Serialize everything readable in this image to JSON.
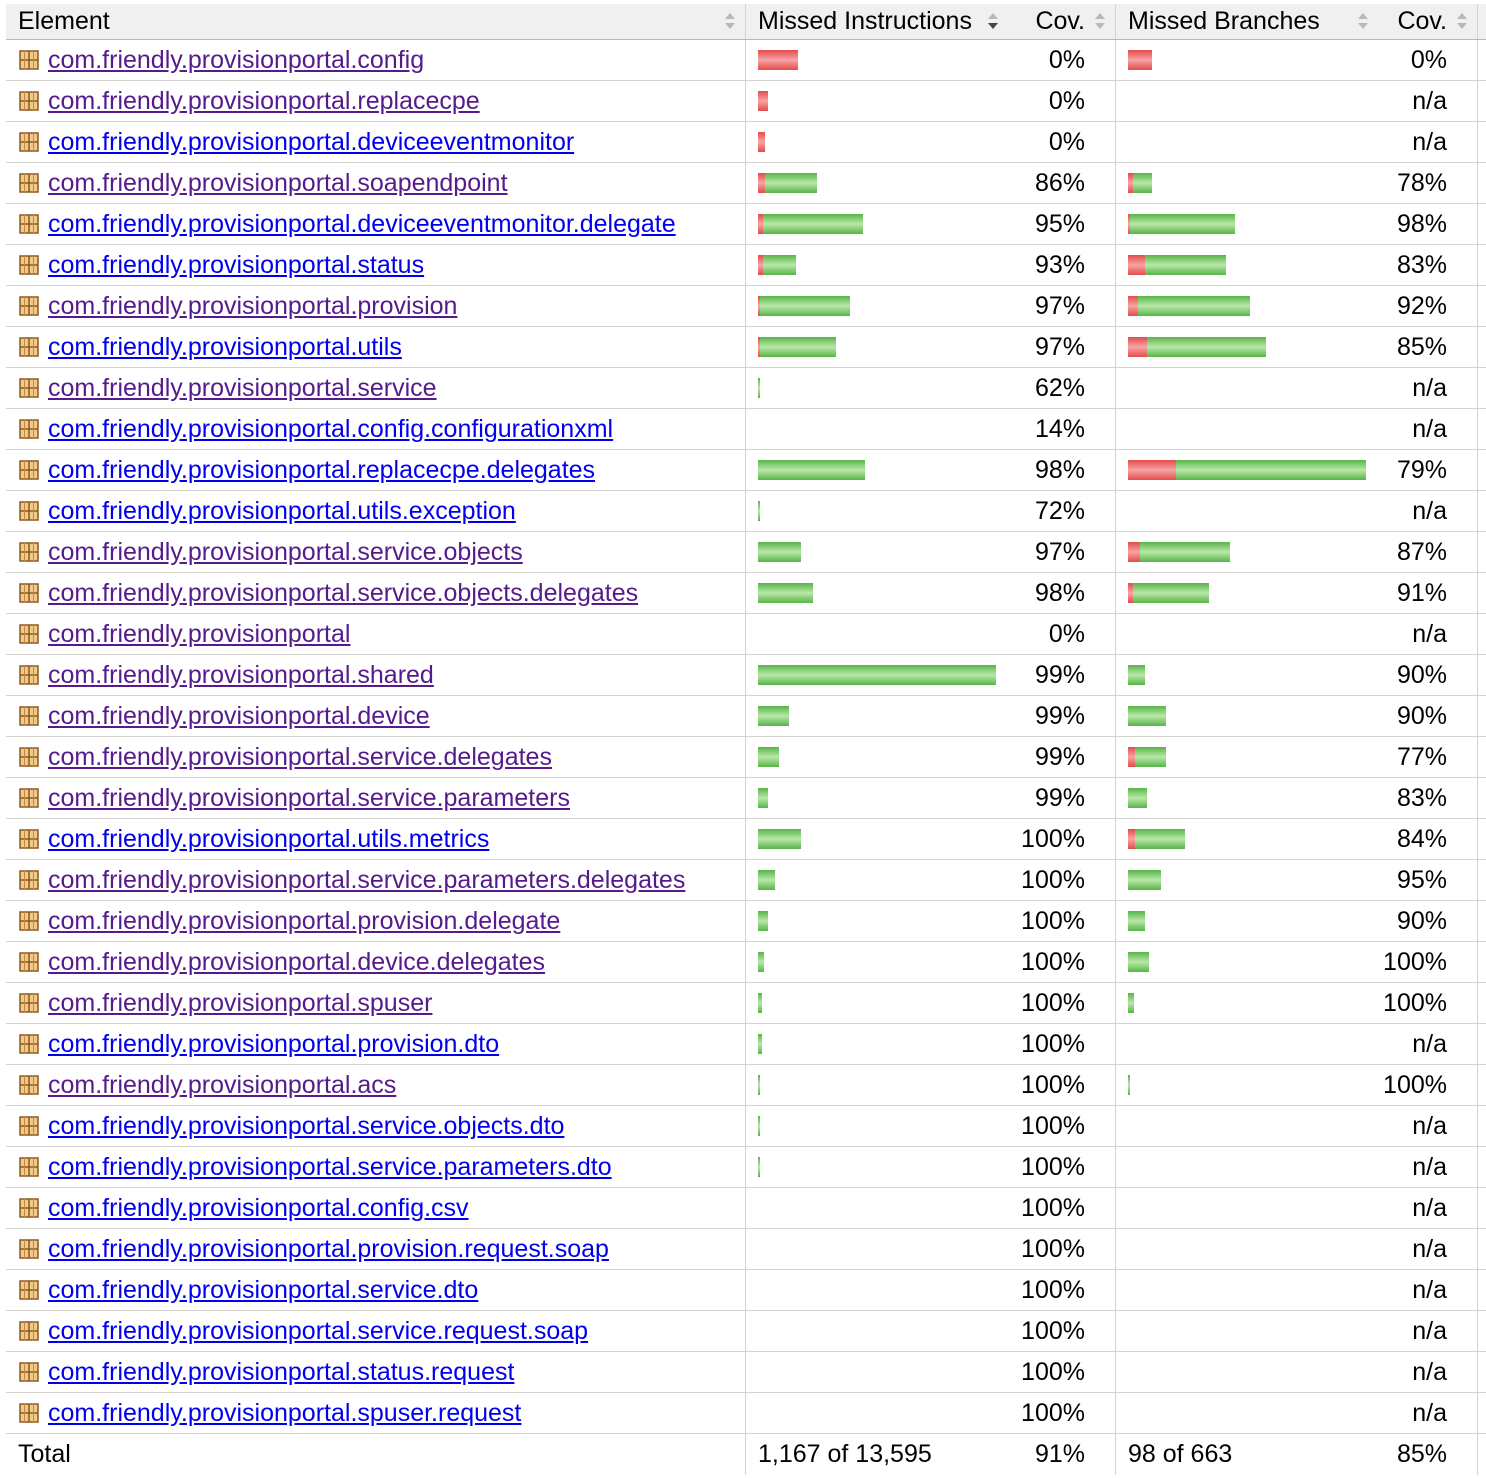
{
  "colors": {
    "link": "#0000ee",
    "visited": "#551a8b",
    "missed": "#e44b4b",
    "covered": "#58b448"
  },
  "icons": {
    "package": "package-icon",
    "sort": "sort-arrows-icon"
  },
  "table": {
    "headers": {
      "element": "Element",
      "missed_instructions": "Missed Instructions",
      "instr_cov": "Cov.",
      "missed_branches": "Missed Branches",
      "branch_cov": "Cov."
    },
    "rows": [
      {
        "name": "com.friendly.provisionportal.config",
        "visited": true,
        "instr": {
          "missed_frac": 0.17,
          "covered_frac": 0.0
        },
        "instr_cov": "0%",
        "branch": {
          "missed_frac": 0.1,
          "covered_frac": 0.0
        },
        "branch_cov": "0%"
      },
      {
        "name": "com.friendly.provisionportal.replacecpe",
        "visited": true,
        "instr": {
          "missed_frac": 0.04,
          "covered_frac": 0.0
        },
        "instr_cov": "0%",
        "branch": null,
        "branch_cov": "n/a"
      },
      {
        "name": "com.friendly.provisionportal.deviceeventmonitor",
        "visited": false,
        "instr": {
          "missed_frac": 0.03,
          "covered_frac": 0.0
        },
        "instr_cov": "0%",
        "branch": null,
        "branch_cov": "n/a"
      },
      {
        "name": "com.friendly.provisionportal.soapendpoint",
        "visited": true,
        "instr": {
          "missed_frac": 0.03,
          "covered_frac": 0.22
        },
        "instr_cov": "86%",
        "branch": {
          "missed_frac": 0.02,
          "covered_frac": 0.08
        },
        "branch_cov": "78%"
      },
      {
        "name": "com.friendly.provisionportal.deviceeventmonitor.delegate",
        "visited": false,
        "instr": {
          "missed_frac": 0.02,
          "covered_frac": 0.42
        },
        "instr_cov": "95%",
        "branch": {
          "missed_frac": 0.01,
          "covered_frac": 0.44
        },
        "branch_cov": "98%"
      },
      {
        "name": "com.friendly.provisionportal.status",
        "visited": false,
        "instr": {
          "missed_frac": 0.02,
          "covered_frac": 0.14
        },
        "instr_cov": "93%",
        "branch": {
          "missed_frac": 0.07,
          "covered_frac": 0.34
        },
        "branch_cov": "83%"
      },
      {
        "name": "com.friendly.provisionportal.provision",
        "visited": true,
        "instr": {
          "missed_frac": 0.01,
          "covered_frac": 0.38
        },
        "instr_cov": "97%",
        "branch": {
          "missed_frac": 0.04,
          "covered_frac": 0.47
        },
        "branch_cov": "92%"
      },
      {
        "name": "com.friendly.provisionportal.utils",
        "visited": false,
        "instr": {
          "missed_frac": 0.01,
          "covered_frac": 0.32
        },
        "instr_cov": "97%",
        "branch": {
          "missed_frac": 0.08,
          "covered_frac": 0.5
        },
        "branch_cov": "85%"
      },
      {
        "name": "com.friendly.provisionportal.service",
        "visited": true,
        "instr": {
          "missed_frac": 0.0,
          "covered_frac": 0.008
        },
        "instr_cov": "62%",
        "branch": null,
        "branch_cov": "n/a"
      },
      {
        "name": "com.friendly.provisionportal.config.configurationxml",
        "visited": false,
        "instr": null,
        "instr_cov": "14%",
        "branch": null,
        "branch_cov": "n/a"
      },
      {
        "name": "com.friendly.provisionportal.replacecpe.delegates",
        "visited": false,
        "instr": {
          "missed_frac": 0.0,
          "covered_frac": 0.45
        },
        "instr_cov": "98%",
        "branch": {
          "missed_frac": 0.2,
          "covered_frac": 0.8
        },
        "branch_cov": "79%"
      },
      {
        "name": "com.friendly.provisionportal.utils.exception",
        "visited": false,
        "instr": {
          "missed_frac": 0.0,
          "covered_frac": 0.008
        },
        "instr_cov": "72%",
        "branch": null,
        "branch_cov": "n/a"
      },
      {
        "name": "com.friendly.provisionportal.service.objects",
        "visited": true,
        "instr": {
          "missed_frac": 0.0,
          "covered_frac": 0.18
        },
        "instr_cov": "97%",
        "branch": {
          "missed_frac": 0.05,
          "covered_frac": 0.38
        },
        "branch_cov": "87%"
      },
      {
        "name": "com.friendly.provisionportal.service.objects.delegates",
        "visited": true,
        "instr": {
          "missed_frac": 0.0,
          "covered_frac": 0.23
        },
        "instr_cov": "98%",
        "branch": {
          "missed_frac": 0.02,
          "covered_frac": 0.32
        },
        "branch_cov": "91%"
      },
      {
        "name": "com.friendly.provisionportal",
        "visited": true,
        "instr": null,
        "instr_cov": "0%",
        "branch": null,
        "branch_cov": "n/a"
      },
      {
        "name": "com.friendly.provisionportal.shared",
        "visited": true,
        "instr": {
          "missed_frac": 0.0,
          "covered_frac": 1.0
        },
        "instr_cov": "99%",
        "branch": {
          "missed_frac": 0.0,
          "covered_frac": 0.07
        },
        "branch_cov": "90%"
      },
      {
        "name": "com.friendly.provisionportal.device",
        "visited": true,
        "instr": {
          "missed_frac": 0.0,
          "covered_frac": 0.13
        },
        "instr_cov": "99%",
        "branch": {
          "missed_frac": 0.0,
          "covered_frac": 0.16
        },
        "branch_cov": "90%"
      },
      {
        "name": "com.friendly.provisionportal.service.delegates",
        "visited": true,
        "instr": {
          "missed_frac": 0.0,
          "covered_frac": 0.09
        },
        "instr_cov": "99%",
        "branch": {
          "missed_frac": 0.03,
          "covered_frac": 0.13
        },
        "branch_cov": "77%"
      },
      {
        "name": "com.friendly.provisionportal.service.parameters",
        "visited": true,
        "instr": {
          "missed_frac": 0.0,
          "covered_frac": 0.04
        },
        "instr_cov": "99%",
        "branch": {
          "missed_frac": 0.0,
          "covered_frac": 0.08
        },
        "branch_cov": "83%"
      },
      {
        "name": "com.friendly.provisionportal.utils.metrics",
        "visited": false,
        "instr": {
          "missed_frac": 0.0,
          "covered_frac": 0.18
        },
        "instr_cov": "100%",
        "branch": {
          "missed_frac": 0.03,
          "covered_frac": 0.21
        },
        "branch_cov": "84%"
      },
      {
        "name": "com.friendly.provisionportal.service.parameters.delegates",
        "visited": true,
        "instr": {
          "missed_frac": 0.0,
          "covered_frac": 0.07
        },
        "instr_cov": "100%",
        "branch": {
          "missed_frac": 0.0,
          "covered_frac": 0.14
        },
        "branch_cov": "95%"
      },
      {
        "name": "com.friendly.provisionportal.provision.delegate",
        "visited": true,
        "instr": {
          "missed_frac": 0.0,
          "covered_frac": 0.04
        },
        "instr_cov": "100%",
        "branch": {
          "missed_frac": 0.0,
          "covered_frac": 0.07
        },
        "branch_cov": "90%"
      },
      {
        "name": "com.friendly.provisionportal.device.delegates",
        "visited": true,
        "instr": {
          "missed_frac": 0.0,
          "covered_frac": 0.025
        },
        "instr_cov": "100%",
        "branch": {
          "missed_frac": 0.0,
          "covered_frac": 0.09
        },
        "branch_cov": "100%"
      },
      {
        "name": "com.friendly.provisionportal.spuser",
        "visited": true,
        "instr": {
          "missed_frac": 0.0,
          "covered_frac": 0.017
        },
        "instr_cov": "100%",
        "branch": {
          "missed_frac": 0.0,
          "covered_frac": 0.025
        },
        "branch_cov": "100%"
      },
      {
        "name": "com.friendly.provisionportal.provision.dto",
        "visited": false,
        "instr": {
          "missed_frac": 0.0,
          "covered_frac": 0.017
        },
        "instr_cov": "100%",
        "branch": null,
        "branch_cov": "n/a"
      },
      {
        "name": "com.friendly.provisionportal.acs",
        "visited": true,
        "instr": {
          "missed_frac": 0.0,
          "covered_frac": 0.008
        },
        "instr_cov": "100%",
        "branch": {
          "missed_frac": 0.0,
          "covered_frac": 0.008
        },
        "branch_cov": "100%"
      },
      {
        "name": "com.friendly.provisionportal.service.objects.dto",
        "visited": false,
        "instr": {
          "missed_frac": 0.0,
          "covered_frac": 0.008
        },
        "instr_cov": "100%",
        "branch": null,
        "branch_cov": "n/a"
      },
      {
        "name": "com.friendly.provisionportal.service.parameters.dto",
        "visited": false,
        "instr": {
          "missed_frac": 0.0,
          "covered_frac": 0.008
        },
        "instr_cov": "100%",
        "branch": null,
        "branch_cov": "n/a"
      },
      {
        "name": "com.friendly.provisionportal.config.csv",
        "visited": false,
        "instr": null,
        "instr_cov": "100%",
        "branch": null,
        "branch_cov": "n/a"
      },
      {
        "name": "com.friendly.provisionportal.provision.request.soap",
        "visited": false,
        "instr": null,
        "instr_cov": "100%",
        "branch": null,
        "branch_cov": "n/a"
      },
      {
        "name": "com.friendly.provisionportal.service.dto",
        "visited": false,
        "instr": null,
        "instr_cov": "100%",
        "branch": null,
        "branch_cov": "n/a"
      },
      {
        "name": "com.friendly.provisionportal.service.request.soap",
        "visited": false,
        "instr": null,
        "instr_cov": "100%",
        "branch": null,
        "branch_cov": "n/a"
      },
      {
        "name": "com.friendly.provisionportal.status.request",
        "visited": false,
        "instr": null,
        "instr_cov": "100%",
        "branch": null,
        "branch_cov": "n/a"
      },
      {
        "name": "com.friendly.provisionportal.spuser.request",
        "visited": false,
        "instr": null,
        "instr_cov": "100%",
        "branch": null,
        "branch_cov": "n/a"
      }
    ],
    "total": {
      "label": "Total",
      "missed_instructions": "1,167 of 13,595",
      "instr_cov": "91%",
      "missed_branches": "98 of 663",
      "branch_cov": "85%"
    }
  }
}
